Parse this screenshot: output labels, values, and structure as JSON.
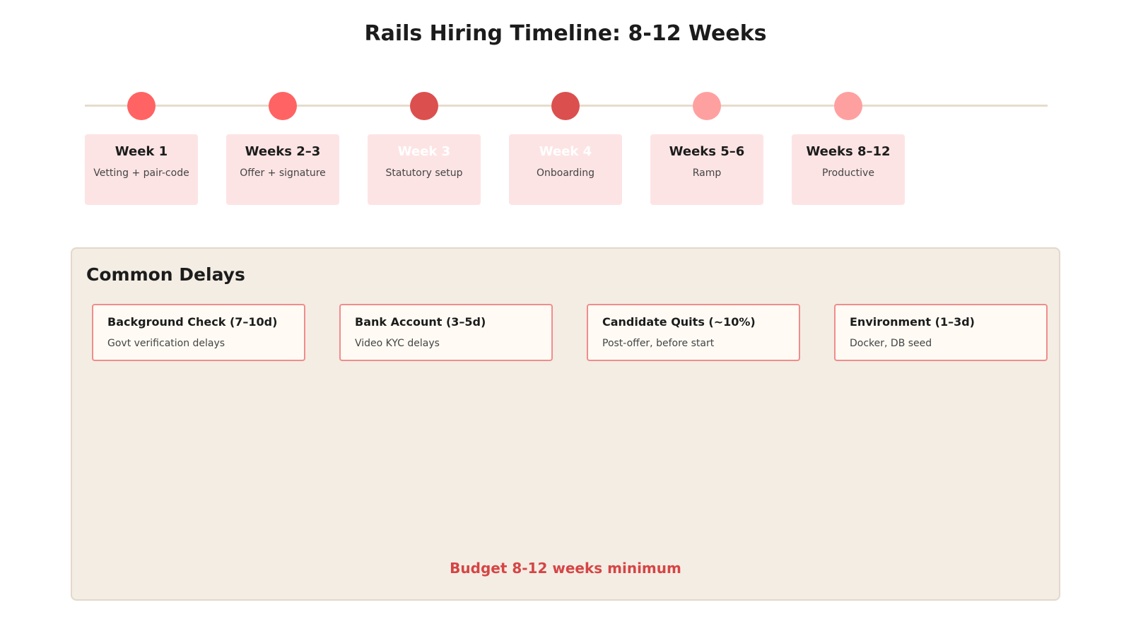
{
  "title": "Rails Hiring Timeline: 8-12 Weeks",
  "colors": {
    "dot_bright": "#ff6363",
    "dot_dark": "#dc4f4f",
    "dot_light": "#ffa0a0",
    "card_bg": "#fde4e4",
    "timeline_line": "#e6dccb",
    "panel_bg": "#f3ede4",
    "delay_border": "#f28c8c",
    "budget_text": "#d64545"
  },
  "timeline": {
    "milestones": [
      {
        "label": "Week 1",
        "description": "Vetting + pair-code",
        "dot_color": "#ff6363",
        "label_color": "dark"
      },
      {
        "label": "Weeks 2–3",
        "description": "Offer + signature",
        "dot_color": "#ff6363",
        "label_color": "dark"
      },
      {
        "label": "Week 3",
        "description": "Statutory setup",
        "dot_color": "#dc4f4f",
        "label_color": "light"
      },
      {
        "label": "Week 4",
        "description": "Onboarding",
        "dot_color": "#dc4f4f",
        "label_color": "light"
      },
      {
        "label": "Weeks 5–6",
        "description": "Ramp",
        "dot_color": "#ffa0a0",
        "label_color": "dark"
      },
      {
        "label": "Weeks 8–12",
        "description": "Productive",
        "dot_color": "#ffa0a0",
        "label_color": "dark"
      }
    ]
  },
  "delays": {
    "heading": "Common Delays",
    "items": [
      {
        "title": "Background Check (7–10d)",
        "description": "Govt verification delays"
      },
      {
        "title": "Bank Account (3–5d)",
        "description": "Video KYC delays"
      },
      {
        "title": "Candidate Quits (~10%)",
        "description": "Post-offer, before start"
      },
      {
        "title": "Environment (1–3d)",
        "description": "Docker, DB seed"
      }
    ],
    "budget_note": "Budget 8-12 weeks minimum"
  }
}
